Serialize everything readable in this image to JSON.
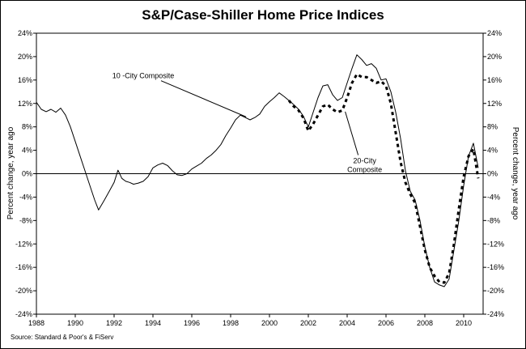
{
  "chart_data": {
    "type": "line",
    "title": "S&P/Case-Shiller Home Price Indices",
    "source": "Source: Standard & Poor's & FiServ",
    "ylabel_left": "Percent change, year ago",
    "ylabel_right": "Percent change, year ago",
    "x_ticks": [
      "1988",
      "1990",
      "1992",
      "1994",
      "1996",
      "1998",
      "2000",
      "2002",
      "2004",
      "2006",
      "2008",
      "2010"
    ],
    "y_ticks": [
      "-24%",
      "-20%",
      "-16%",
      "-12%",
      "-8%",
      "-4%",
      "0%",
      "4%",
      "8%",
      "12%",
      "16%",
      "20%",
      "24%"
    ],
    "xlim": [
      1988,
      2011
    ],
    "ylim": [
      -24,
      24
    ],
    "zero_line": true,
    "grid": false,
    "series": [
      {
        "name": "10 -City Composite",
        "style": "solid",
        "color": "#000000",
        "x": [
          1988.0,
          1988.25,
          1988.5,
          1988.75,
          1989.0,
          1989.25,
          1989.5,
          1989.75,
          1990.0,
          1990.25,
          1990.5,
          1990.75,
          1991.0,
          1991.2,
          1991.5,
          1991.75,
          1992.0,
          1992.2,
          1992.4,
          1992.6,
          1992.8,
          1993.0,
          1993.25,
          1993.5,
          1993.75,
          1994.0,
          1994.25,
          1994.5,
          1994.75,
          1995.0,
          1995.25,
          1995.5,
          1995.75,
          1996.0,
          1996.25,
          1996.5,
          1996.75,
          1997.0,
          1997.25,
          1997.5,
          1997.75,
          1998.0,
          1998.25,
          1998.5,
          1998.75,
          1999.0,
          1999.25,
          1999.5,
          1999.75,
          2000.0,
          2000.25,
          2000.5,
          2000.75,
          2001.0,
          2001.25,
          2001.5,
          2001.75,
          2002.0,
          2002.25,
          2002.5,
          2002.75,
          2003.0,
          2003.25,
          2003.5,
          2003.75,
          2004.0,
          2004.25,
          2004.5,
          2004.75,
          2005.0,
          2005.25,
          2005.5,
          2005.75,
          2006.0,
          2006.25,
          2006.5,
          2006.75,
          2007.0,
          2007.25,
          2007.5,
          2007.75,
          2008.0,
          2008.25,
          2008.5,
          2008.75,
          2009.0,
          2009.25,
          2009.5,
          2009.75,
          2010.0,
          2010.25,
          2010.5,
          2010.75
        ],
        "values": [
          12.2,
          11.0,
          10.6,
          11.0,
          10.5,
          11.2,
          10.0,
          8.0,
          5.5,
          3.0,
          0.5,
          -2.0,
          -4.5,
          -6.2,
          -4.5,
          -3.0,
          -1.5,
          0.6,
          -0.8,
          -1.3,
          -1.5,
          -1.8,
          -1.6,
          -1.3,
          -0.5,
          1.0,
          1.5,
          1.8,
          1.4,
          0.5,
          -0.2,
          -0.3,
          0.0,
          0.8,
          1.3,
          1.8,
          2.6,
          3.2,
          4.0,
          5.0,
          6.5,
          7.8,
          9.2,
          10.0,
          9.6,
          9.2,
          9.6,
          10.2,
          11.5,
          12.3,
          13.0,
          13.8,
          13.2,
          12.5,
          11.8,
          11.0,
          9.8,
          8.0,
          10.5,
          13.0,
          15.0,
          15.2,
          13.5,
          12.5,
          13.0,
          15.5,
          18.0,
          20.3,
          19.5,
          18.5,
          18.8,
          18.0,
          16.0,
          16.2,
          14.0,
          10.5,
          6.0,
          0.5,
          -3.0,
          -4.5,
          -8.0,
          -12.5,
          -16.0,
          -18.5,
          -19.0,
          -19.3,
          -18.0,
          -13.0,
          -8.0,
          -2.0,
          3.0,
          5.2,
          1.0
        ]
      },
      {
        "name": "20-City Composite",
        "style": "dashed",
        "color": "#000000",
        "x": [
          2001.0,
          2001.25,
          2001.5,
          2001.75,
          2002.0,
          2002.25,
          2002.5,
          2002.75,
          2003.0,
          2003.25,
          2003.5,
          2003.75,
          2004.0,
          2004.25,
          2004.5,
          2004.75,
          2005.0,
          2005.25,
          2005.5,
          2005.75,
          2006.0,
          2006.25,
          2006.5,
          2006.75,
          2007.0,
          2007.25,
          2007.5,
          2007.75,
          2008.0,
          2008.25,
          2008.5,
          2008.75,
          2009.0,
          2009.25,
          2009.5,
          2009.75,
          2010.0,
          2010.25,
          2010.5,
          2010.75
        ],
        "values": [
          12.5,
          11.5,
          10.8,
          9.5,
          7.3,
          8.5,
          10.0,
          11.5,
          11.8,
          11.0,
          10.5,
          10.8,
          13.0,
          15.5,
          17.0,
          16.5,
          16.5,
          16.0,
          15.5,
          15.8,
          15.0,
          12.0,
          7.0,
          2.0,
          -1.5,
          -3.5,
          -5.0,
          -9.0,
          -13.0,
          -16.0,
          -17.5,
          -18.5,
          -18.6,
          -17.0,
          -12.0,
          -6.0,
          -0.5,
          3.0,
          4.2,
          -0.8
        ]
      }
    ],
    "annotations": [
      {
        "lines": [
          "10 -City Composite"
        ],
        "series": "10 -City Composite",
        "arrow_to_x": 1998.8,
        "arrow_to_y": 9.7,
        "text_x": 1993.5,
        "text_y": 16.3
      },
      {
        "lines": [
          "20-City",
          "Composite"
        ],
        "series": "20-City Composite",
        "arrow_to_x": 2003.9,
        "arrow_to_y": 10.6,
        "text_x": 2004.9,
        "text_y": 1.8
      }
    ]
  }
}
